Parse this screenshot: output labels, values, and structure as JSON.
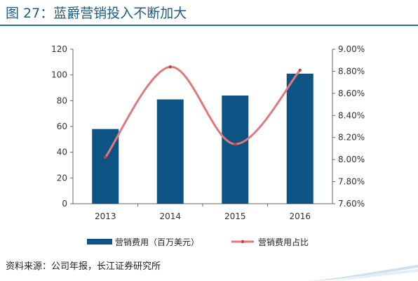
{
  "figure": {
    "title": "图 27：蓝爵营销投入不断加大",
    "source": "资料来源：公司年报，长江证券研究所"
  },
  "chart_data": {
    "type": "bar",
    "categories": [
      "2013",
      "2014",
      "2015",
      "2016"
    ],
    "series": [
      {
        "name": "营销费用（百万美元）",
        "type": "bar",
        "axis": "left",
        "values": [
          58,
          81,
          84,
          101
        ],
        "color": "#0d5384"
      },
      {
        "name": "营销费用占比",
        "type": "line",
        "axis": "right",
        "values": [
          8.02,
          8.84,
          8.14,
          8.81
        ],
        "color": "#e1797b"
      }
    ],
    "y_left": {
      "min": 0,
      "max": 120,
      "ticks": [
        "0",
        "20",
        "40",
        "60",
        "80",
        "100",
        "120"
      ]
    },
    "y_right": {
      "min": 7.6,
      "max": 9.0,
      "ticks": [
        "7.60%",
        "7.80%",
        "8.00%",
        "8.20%",
        "8.40%",
        "8.60%",
        "8.80%",
        "9.00%"
      ]
    },
    "grid": false,
    "legend": "bottom"
  }
}
